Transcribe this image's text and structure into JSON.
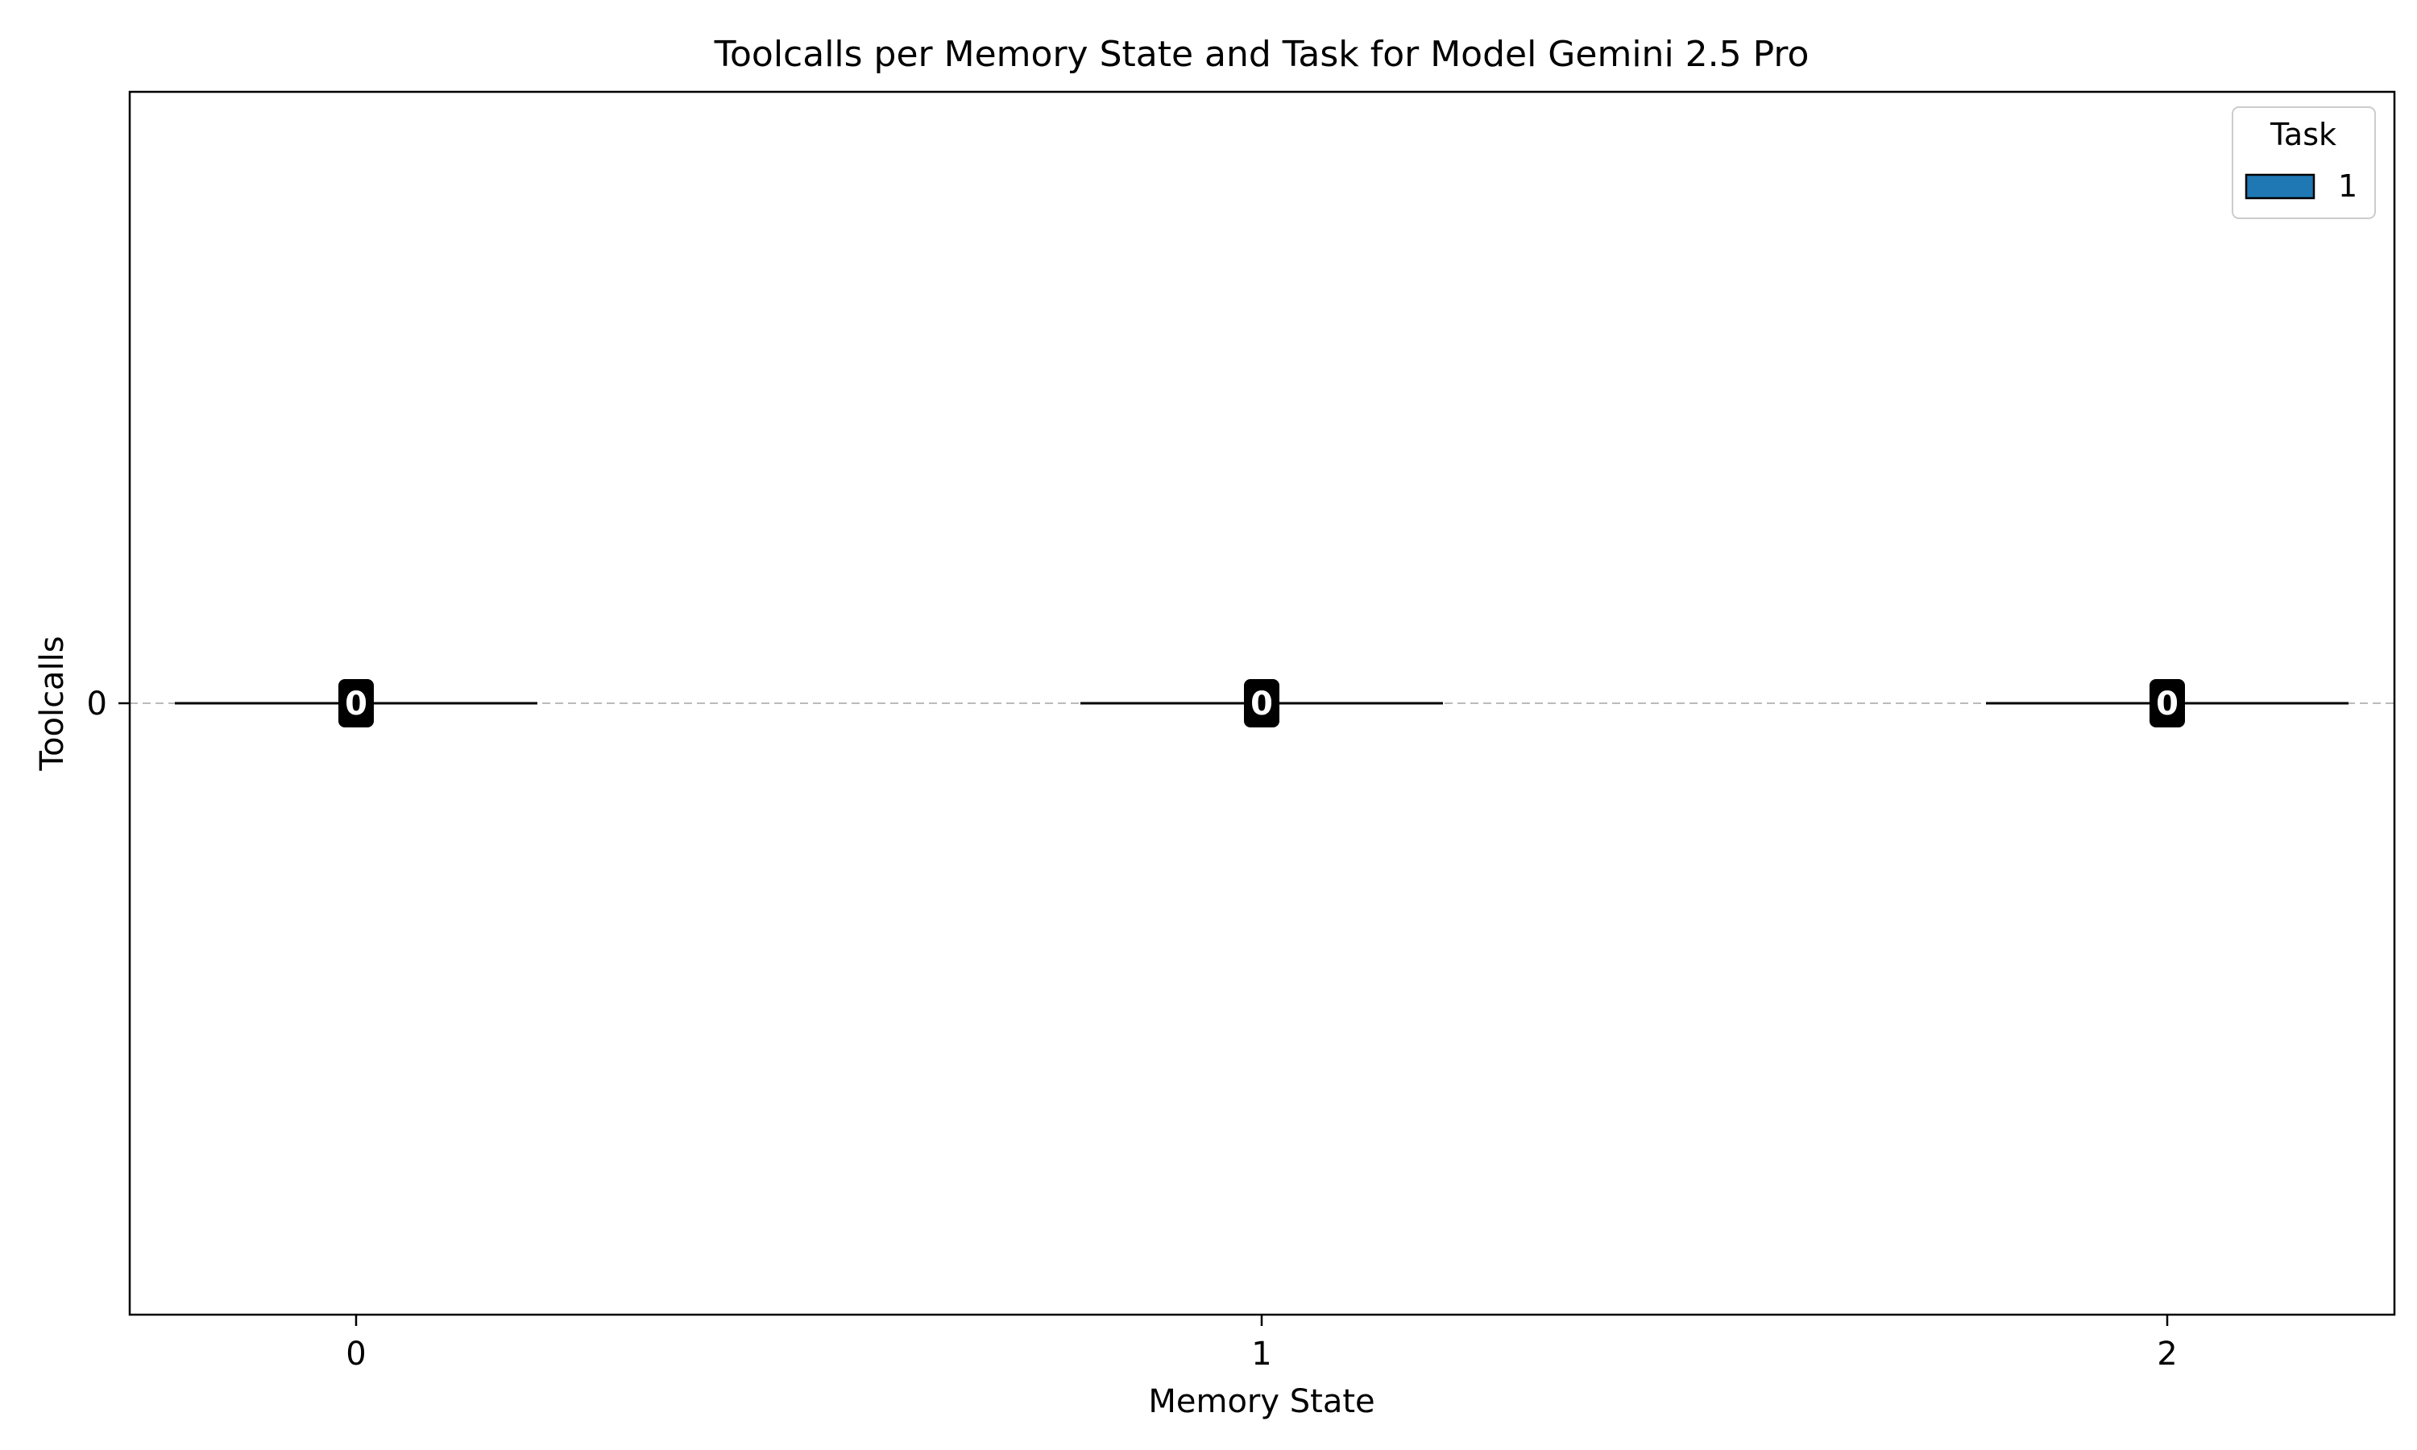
{
  "chart_data": {
    "type": "bar",
    "title": "Toolcalls per Memory State and Task for Model Gemini 2.5 Pro",
    "xlabel": "Memory State",
    "ylabel": "Toolcalls",
    "categories": [
      "0",
      "1",
      "2"
    ],
    "y_ticks": [
      "0"
    ],
    "ylim": [
      -1,
      1
    ],
    "grid": "horizontal dashed",
    "legend": {
      "title": "Task",
      "placement": "top-right",
      "entries": [
        {
          "label": "1",
          "color": "#1f77b4"
        }
      ]
    },
    "series": [
      {
        "name": "1",
        "color": "#1f77b4",
        "values": [
          0,
          0,
          0
        ],
        "labels": [
          "0",
          "0",
          "0"
        ]
      }
    ]
  }
}
